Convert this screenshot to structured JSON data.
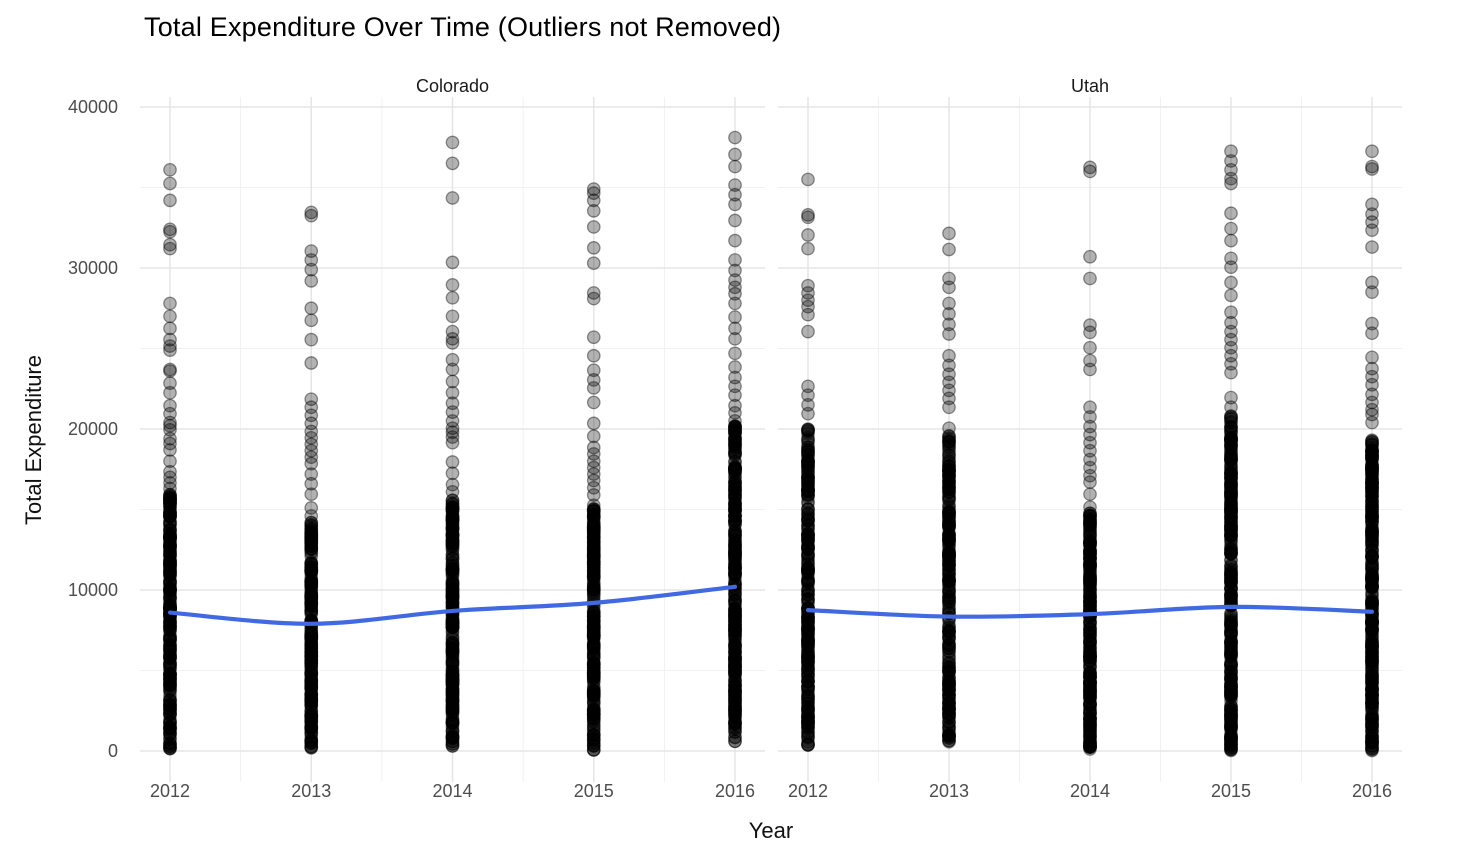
{
  "chart_data": {
    "type": "scatter",
    "title": "Total Expenditure Over Time (Outliers not Removed)",
    "xlabel": "Year",
    "ylabel": "Total Expenditure",
    "x_ticks": [
      2012,
      2013,
      2014,
      2015,
      2016
    ],
    "x_tick_labels": [
      "2012",
      "2013",
      "2014",
      "2015",
      "2016"
    ],
    "y_ticks": [
      0,
      10000,
      20000,
      30000,
      40000
    ],
    "y_tick_labels": [
      "0",
      "10000",
      "20000",
      "30000",
      "40000"
    ],
    "y_minor_ticks": [
      5000,
      15000,
      25000,
      35000
    ],
    "ylim": [
      -1900,
      40600
    ],
    "grid": "major+minor",
    "legend": "none",
    "colors": {
      "smooth_line": "#4169E1",
      "point_fill": "rgba(0,0,0,0.30)",
      "point_stroke": "rgba(0,0,0,0.42)",
      "grid_major": "#E5E5E5",
      "grid_minor": "#F1F1F1",
      "axis_text": "#4d4d4d",
      "title_text": "#000000"
    },
    "facets": [
      {
        "label": "Colorado",
        "smooth": {
          "x": [
            2012,
            2013,
            2014,
            2015,
            2016
          ],
          "y": [
            8600,
            7900,
            8700,
            9200,
            10200
          ]
        },
        "columns": [
          {
            "x": 2012,
            "points": [
              36100,
              35250,
              34200,
              32400,
              32250,
              31450,
              31200,
              27800,
              27000,
              26250,
              25550,
              25150,
              24900,
              23700,
              23600,
              22850,
              22250,
              21450,
              20950,
              20400,
              20200,
              19950,
              19400,
              19100,
              18700,
              18000,
              17350,
              17000,
              16650,
              16300
            ],
            "dense_band": {
              "min": 100,
              "max": 16000,
              "count": 270
            }
          },
          {
            "x": 2013,
            "points": [
              33450,
              33250,
              31050,
              30500,
              29900,
              29200,
              27500,
              26750,
              25550,
              24100,
              21850,
              21350,
              20850,
              20350,
              19850,
              19450,
              19050,
              18650,
              18250,
              17850,
              17200,
              16600,
              15950,
              15100,
              14600
            ],
            "dense_band": {
              "min": 200,
              "max": 14300,
              "count": 260
            }
          },
          {
            "x": 2014,
            "points": [
              37800,
              36500,
              34350,
              30350,
              28950,
              28150,
              27000,
              26050,
              25600,
              25350,
              24300,
              23700,
              22950,
              22250,
              21600,
              21050,
              20500,
              20050,
              19800,
              19500,
              19150,
              17950,
              17250,
              16550,
              16100
            ],
            "dense_band": {
              "min": 300,
              "max": 15700,
              "count": 270
            }
          },
          {
            "x": 2015,
            "points": [
              34900,
              34650,
              34200,
              33550,
              32550,
              31250,
              30300,
              28450,
              28100,
              25700,
              24550,
              23650,
              23050,
              22550,
              21650,
              20350,
              19550,
              18850,
              18450,
              18000,
              17600,
              17200,
              16800,
              16350,
              15900
            ],
            "dense_band": {
              "min": 0,
              "max": 15500,
              "count": 270
            }
          },
          {
            "x": 2016,
            "points": [
              38100,
              37050,
              36300,
              35150,
              34550,
              33950,
              32950,
              31700,
              30500,
              29850,
              29250,
              28800,
              28400,
              27800,
              26950,
              26250,
              25600,
              24700,
              23850,
              23200,
              22650,
              22100,
              21450,
              21000,
              20500
            ],
            "dense_band": {
              "min": 600,
              "max": 20200,
              "count": 330
            }
          }
        ]
      },
      {
        "label": "Utah",
        "smooth": {
          "x": [
            2012,
            2013,
            2014,
            2015,
            2016
          ],
          "y": [
            8750,
            8350,
            8500,
            8950,
            8650
          ]
        },
        "columns": [
          {
            "x": 2012,
            "points": [
              35500,
              33300,
              33150,
              32050,
              31200,
              28900,
              28450,
              28000,
              27600,
              27100,
              26050,
              22650,
              22100,
              21500,
              20950
            ],
            "dense_band": {
              "min": 350,
              "max": 20000,
              "count": 280
            }
          },
          {
            "x": 2013,
            "points": [
              32150,
              31150,
              29350,
              28800,
              27800,
              27150,
              26500,
              25900,
              24550,
              23950,
              23400,
              22900,
              22400,
              21900,
              21350,
              20050
            ],
            "dense_band": {
              "min": 450,
              "max": 19600,
              "count": 270
            }
          },
          {
            "x": 2014,
            "points": [
              36250,
              36000,
              30700,
              29350,
              26450,
              26000,
              25050,
              24250,
              23700,
              21350,
              20750,
              20150,
              19650,
              19150,
              18650,
              18100,
              17600,
              17100,
              16700,
              15950,
              15150
            ],
            "dense_band": {
              "min": 0,
              "max": 14800,
              "count": 270
            }
          },
          {
            "x": 2015,
            "points": [
              37250,
              36650,
              36100,
              35550,
              35250,
              33400,
              32450,
              31700,
              30600,
              30050,
              29100,
              28300,
              27250,
              26600,
              26050,
              25550,
              25050,
              24550,
              24050,
              23500,
              21950,
              21350
            ],
            "dense_band": {
              "min": 0,
              "max": 20900,
              "count": 340
            }
          },
          {
            "x": 2016,
            "points": [
              37250,
              36300,
              36150,
              33950,
              33350,
              32850,
              32350,
              31300,
              29100,
              28500,
              26550,
              25950,
              24450,
              23750,
              23250,
              22750,
              22150,
              21650,
              21200,
              20900,
              20400
            ],
            "dense_band": {
              "min": 0,
              "max": 19400,
              "count": 340
            }
          }
        ]
      }
    ]
  }
}
